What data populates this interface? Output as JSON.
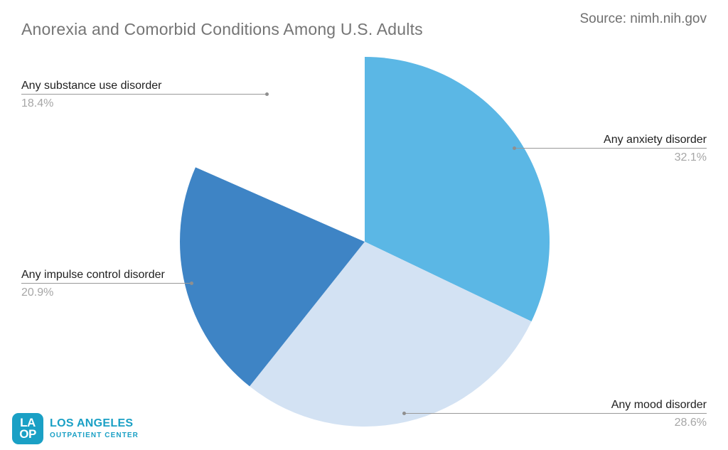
{
  "header": {
    "title": "Anorexia and Comorbid Conditions Among U.S. Adults",
    "source": "Source: nimh.nih.gov"
  },
  "callouts": {
    "substance": {
      "label": "Any substance use disorder",
      "pct": "18.4%"
    },
    "anxiety": {
      "label": "Any anxiety disorder",
      "pct": "32.1%"
    },
    "impulse": {
      "label": "Any impulse control disorder",
      "pct": "20.9%"
    },
    "mood": {
      "label": "Any mood disorder",
      "pct": "28.6%"
    }
  },
  "logo": {
    "badge_line1": "LA",
    "badge_line2": "OP",
    "name": "LOS ANGELES",
    "subtitle": "OUTPATIENT CENTER",
    "brand_color": "#1aa0c5"
  },
  "chart_data": {
    "type": "pie",
    "title": "Anorexia and Comorbid Conditions Among U.S. Adults",
    "source": "Source: nimh.nih.gov",
    "start_angle_deg": 0,
    "direction": "clockwise",
    "slices": [
      {
        "id": "anxiety",
        "label": "Any anxiety disorder",
        "value": 32.1,
        "color": "#5bb7e5"
      },
      {
        "id": "mood",
        "label": "Any mood disorder",
        "value": 28.6,
        "color": "#d3e2f3"
      },
      {
        "id": "impulse",
        "label": "Any impulse control disorder",
        "value": 20.9,
        "color": "#3e84c5"
      },
      {
        "id": "substance",
        "label": "Any substance use disorder",
        "value": 18.4,
        "color": "#ffffff"
      }
    ],
    "legend_position": "callout-labels",
    "grid": false
  }
}
